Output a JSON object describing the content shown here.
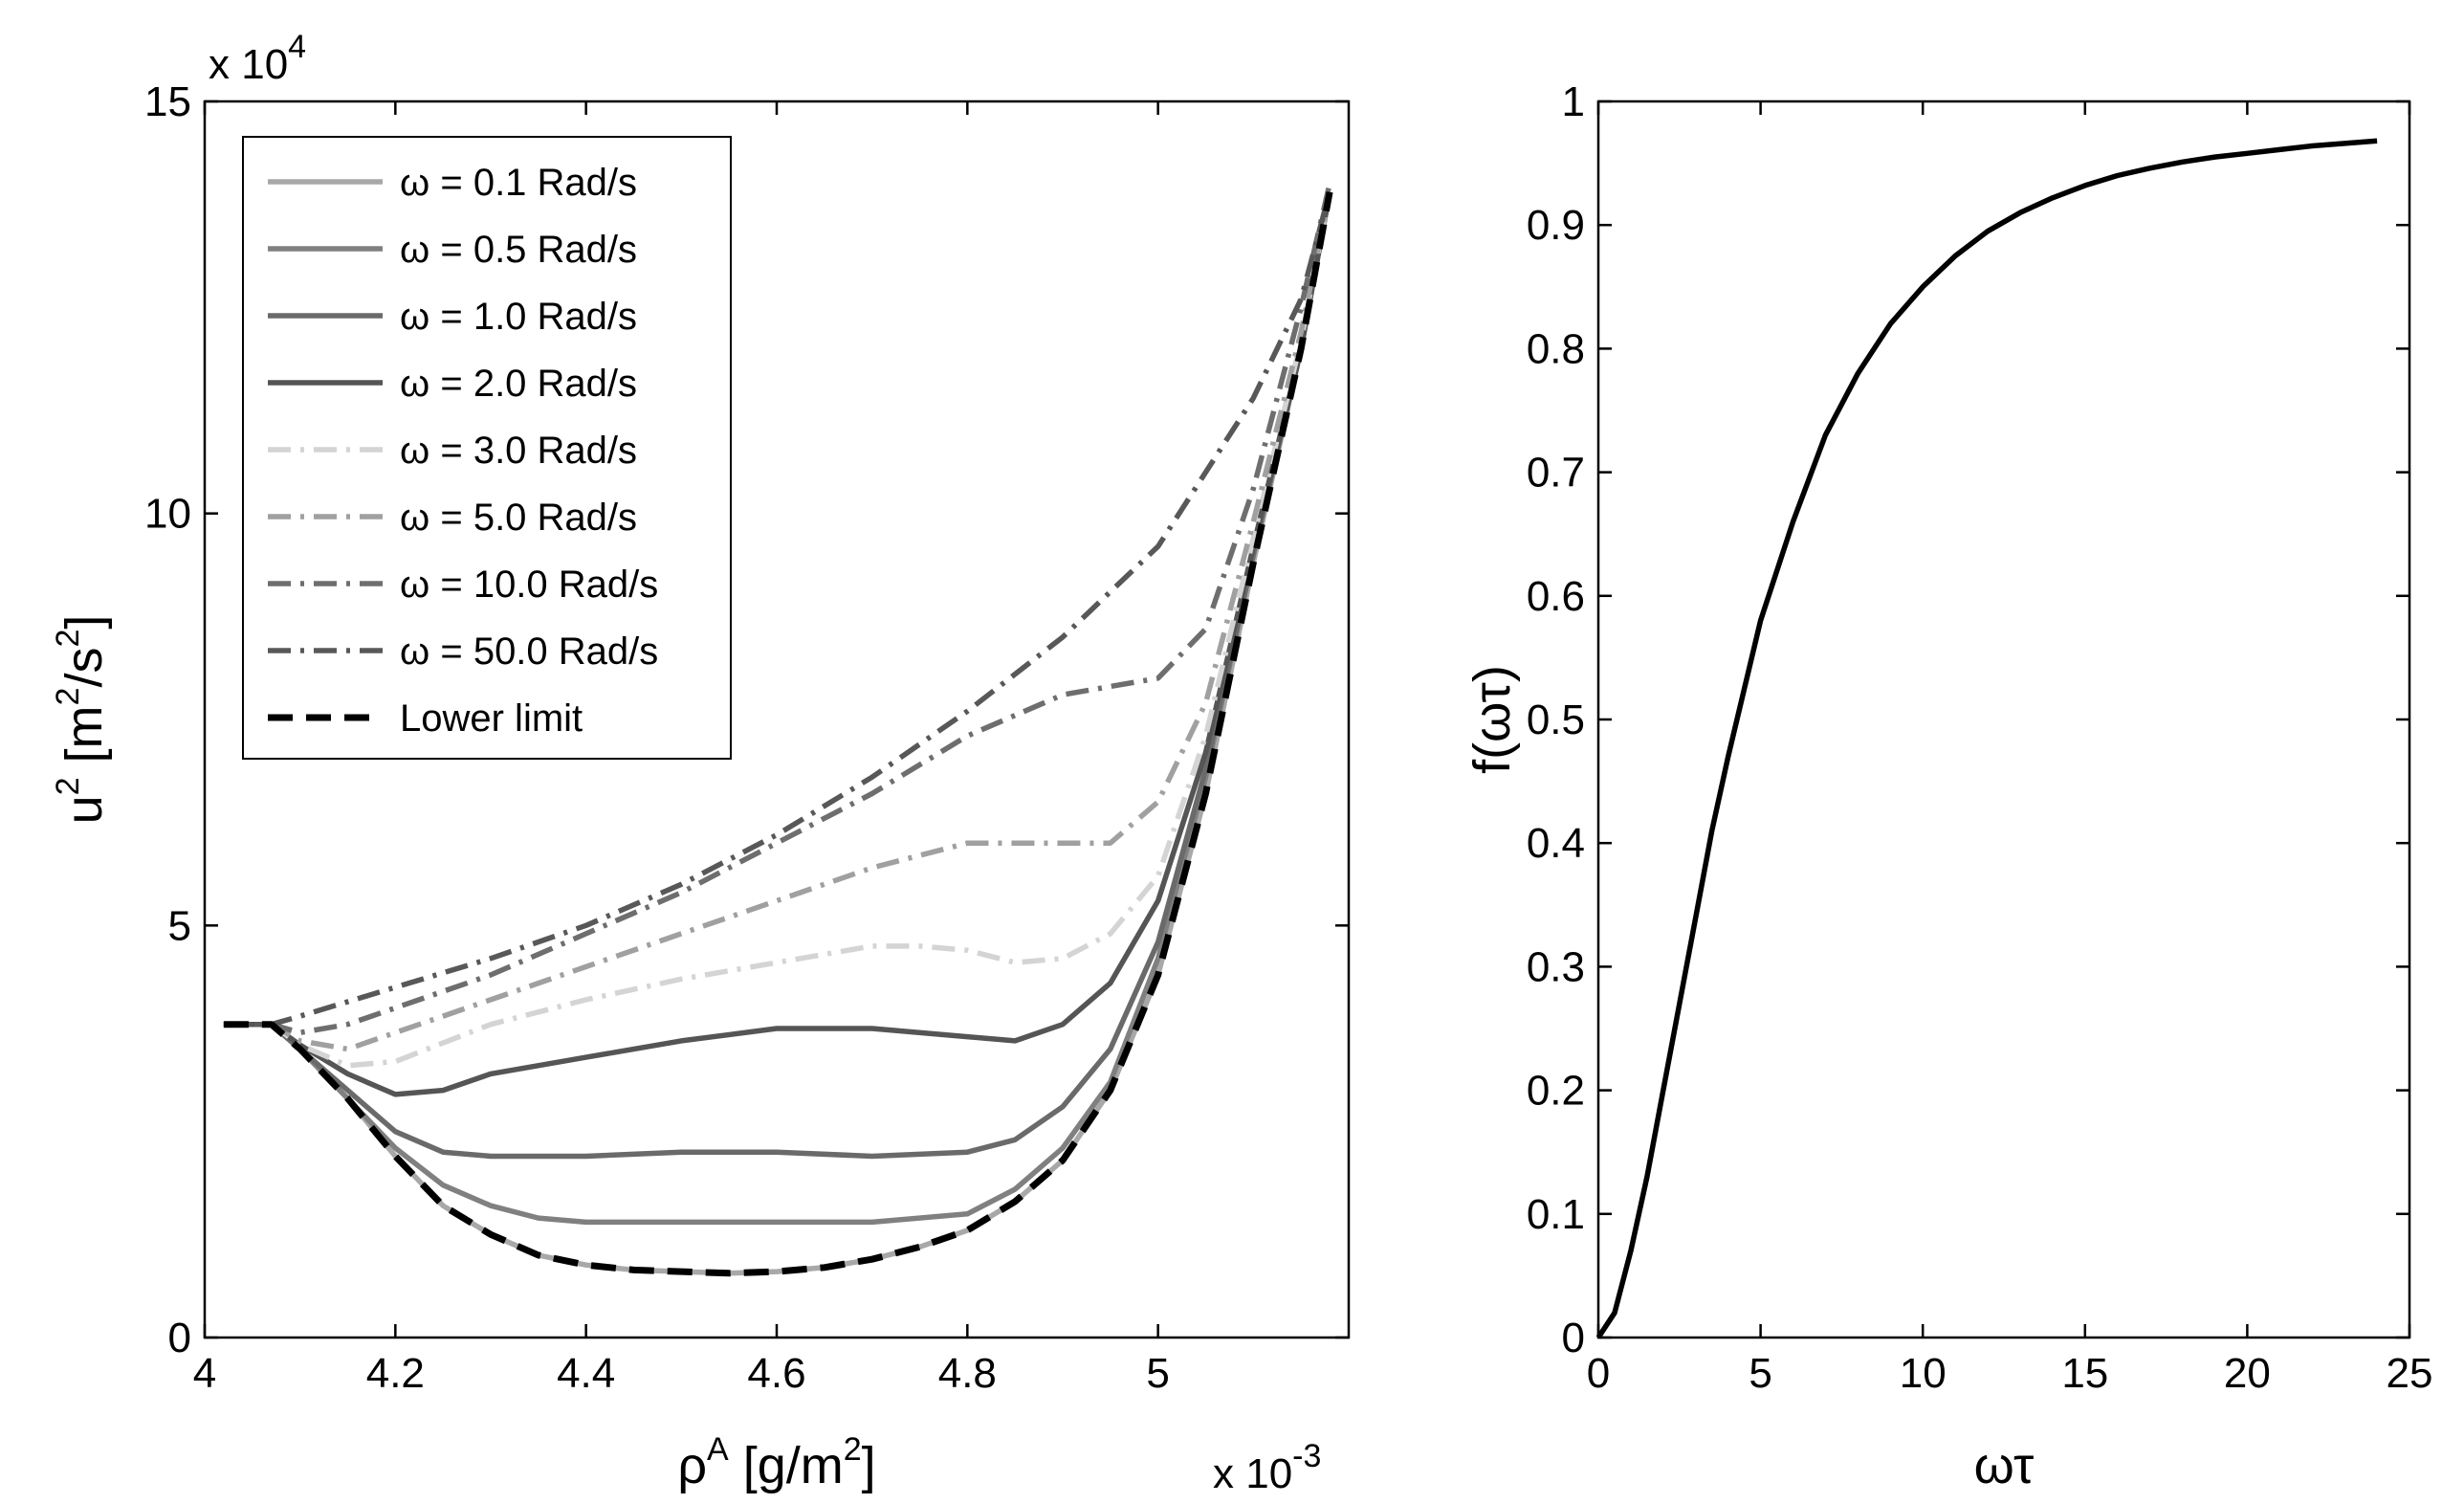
{
  "chart_data": [
    {
      "type": "line",
      "xlabel": {
        "base": "ρ",
        "sup": "A",
        "rest": " [g/m",
        "sup2": "2",
        "end": "]"
      },
      "ylabel": {
        "base": "u",
        "sup": "2",
        "rest": " [m",
        "sup2": "2",
        "mid": "/s",
        "sup3": "2",
        "end": "]"
      },
      "x_multiplier": {
        "prefix": "x 10",
        "exp": "-3"
      },
      "y_multiplier": {
        "prefix": "x 10",
        "exp": "4"
      },
      "xlim": [
        4.0,
        5.2
      ],
      "ylim": [
        0,
        15
      ],
      "xticks": [
        4,
        4.2,
        4.4,
        4.6,
        4.8,
        5
      ],
      "xtick_labels": [
        "4",
        "4.2",
        "4.4",
        "4.6",
        "4.8",
        "5"
      ],
      "yticks": [
        0,
        5,
        10,
        15
      ],
      "ytick_labels": [
        "0",
        "5",
        "10",
        "15"
      ],
      "legend_position": "top-left",
      "series": [
        {
          "name": "ω = 0.1 Rad/s",
          "color": "#a8a8a8",
          "dash": "solid",
          "points": [
            [
              4.02,
              3.8
            ],
            [
              4.07,
              3.8
            ],
            [
              4.1,
              3.5
            ],
            [
              4.15,
              2.9
            ],
            [
              4.2,
              2.2
            ],
            [
              4.25,
              1.6
            ],
            [
              4.3,
              1.25
            ],
            [
              4.35,
              1.0
            ],
            [
              4.4,
              0.88
            ],
            [
              4.45,
              0.82
            ],
            [
              4.5,
              0.8
            ],
            [
              4.55,
              0.78
            ],
            [
              4.6,
              0.8
            ],
            [
              4.65,
              0.85
            ],
            [
              4.7,
              0.95
            ],
            [
              4.75,
              1.1
            ],
            [
              4.8,
              1.3
            ],
            [
              4.85,
              1.65
            ],
            [
              4.9,
              2.15
            ],
            [
              4.95,
              3.0
            ],
            [
              5.0,
              4.4
            ],
            [
              5.05,
              6.6
            ],
            [
              5.1,
              9.4
            ],
            [
              5.15,
              12.0
            ],
            [
              5.18,
              13.9
            ]
          ]
        },
        {
          "name": "ω = 0.5 Rad/s",
          "color": "#808080",
          "dash": "solid",
          "points": [
            [
              4.02,
              3.8
            ],
            [
              4.07,
              3.8
            ],
            [
              4.1,
              3.5
            ],
            [
              4.15,
              2.9
            ],
            [
              4.2,
              2.3
            ],
            [
              4.25,
              1.85
            ],
            [
              4.3,
              1.6
            ],
            [
              4.35,
              1.45
            ],
            [
              4.4,
              1.4
            ],
            [
              4.6,
              1.4
            ],
            [
              4.7,
              1.4
            ],
            [
              4.8,
              1.5
            ],
            [
              4.85,
              1.8
            ],
            [
              4.9,
              2.3
            ],
            [
              4.95,
              3.1
            ],
            [
              5.0,
              4.6
            ],
            [
              5.05,
              6.8
            ],
            [
              5.1,
              9.5
            ],
            [
              5.15,
              12.0
            ],
            [
              5.18,
              13.9
            ]
          ]
        },
        {
          "name": "ω = 1.0 Rad/s",
          "color": "#6a6a6a",
          "dash": "solid",
          "points": [
            [
              4.02,
              3.8
            ],
            [
              4.07,
              3.8
            ],
            [
              4.1,
              3.5
            ],
            [
              4.15,
              3.0
            ],
            [
              4.2,
              2.5
            ],
            [
              4.25,
              2.25
            ],
            [
              4.3,
              2.2
            ],
            [
              4.4,
              2.2
            ],
            [
              4.5,
              2.25
            ],
            [
              4.6,
              2.25
            ],
            [
              4.7,
              2.2
            ],
            [
              4.8,
              2.25
            ],
            [
              4.85,
              2.4
            ],
            [
              4.9,
              2.8
            ],
            [
              4.95,
              3.5
            ],
            [
              5.0,
              4.8
            ],
            [
              5.05,
              6.9
            ],
            [
              5.1,
              9.5
            ],
            [
              5.15,
              12.0
            ],
            [
              5.18,
              13.9
            ]
          ]
        },
        {
          "name": "ω = 2.0 Rad/s",
          "color": "#555555",
          "dash": "solid",
          "points": [
            [
              4.02,
              3.8
            ],
            [
              4.07,
              3.8
            ],
            [
              4.1,
              3.55
            ],
            [
              4.15,
              3.2
            ],
            [
              4.2,
              2.95
            ],
            [
              4.25,
              3.0
            ],
            [
              4.3,
              3.2
            ],
            [
              4.4,
              3.4
            ],
            [
              4.5,
              3.6
            ],
            [
              4.6,
              3.75
            ],
            [
              4.7,
              3.75
            ],
            [
              4.8,
              3.65
            ],
            [
              4.85,
              3.6
            ],
            [
              4.9,
              3.8
            ],
            [
              4.95,
              4.3
            ],
            [
              5.0,
              5.3
            ],
            [
              5.05,
              7.1
            ],
            [
              5.1,
              9.6
            ],
            [
              5.15,
              12.0
            ],
            [
              5.18,
              13.9
            ]
          ]
        },
        {
          "name": "ω = 3.0 Rad/s",
          "color": "#d4d4d4",
          "dash": "dashdot",
          "points": [
            [
              4.02,
              3.8
            ],
            [
              4.07,
              3.8
            ],
            [
              4.1,
              3.55
            ],
            [
              4.15,
              3.3
            ],
            [
              4.2,
              3.35
            ],
            [
              4.3,
              3.8
            ],
            [
              4.4,
              4.1
            ],
            [
              4.5,
              4.35
            ],
            [
              4.6,
              4.55
            ],
            [
              4.7,
              4.75
            ],
            [
              4.75,
              4.75
            ],
            [
              4.8,
              4.7
            ],
            [
              4.85,
              4.55
            ],
            [
              4.9,
              4.6
            ],
            [
              4.95,
              4.9
            ],
            [
              5.0,
              5.6
            ],
            [
              5.05,
              7.3
            ],
            [
              5.1,
              9.7
            ],
            [
              5.15,
              12.1
            ],
            [
              5.18,
              13.9
            ]
          ]
        },
        {
          "name": "ω = 5.0 Rad/s",
          "color": "#a0a0a0",
          "dash": "dashdot",
          "points": [
            [
              4.02,
              3.8
            ],
            [
              4.07,
              3.8
            ],
            [
              4.1,
              3.6
            ],
            [
              4.15,
              3.5
            ],
            [
              4.2,
              3.7
            ],
            [
              4.3,
              4.1
            ],
            [
              4.4,
              4.5
            ],
            [
              4.5,
              4.9
            ],
            [
              4.6,
              5.3
            ],
            [
              4.7,
              5.7
            ],
            [
              4.8,
              6.0
            ],
            [
              4.9,
              6.0
            ],
            [
              4.95,
              6.0
            ],
            [
              5.0,
              6.5
            ],
            [
              5.05,
              7.7
            ],
            [
              5.1,
              9.9
            ],
            [
              5.15,
              12.2
            ],
            [
              5.18,
              13.9
            ]
          ]
        },
        {
          "name": "ω = 10.0 Rad/s",
          "color": "#6e6e6e",
          "dash": "dashdot",
          "points": [
            [
              4.02,
              3.8
            ],
            [
              4.07,
              3.8
            ],
            [
              4.1,
              3.7
            ],
            [
              4.15,
              3.8
            ],
            [
              4.2,
              4.0
            ],
            [
              4.3,
              4.4
            ],
            [
              4.4,
              4.9
            ],
            [
              4.5,
              5.4
            ],
            [
              4.6,
              6.0
            ],
            [
              4.7,
              6.6
            ],
            [
              4.8,
              7.3
            ],
            [
              4.9,
              7.8
            ],
            [
              4.95,
              7.9
            ],
            [
              5.0,
              8.0
            ],
            [
              5.05,
              8.6
            ],
            [
              5.1,
              10.3
            ],
            [
              5.15,
              12.5
            ],
            [
              5.18,
              14.0
            ]
          ]
        },
        {
          "name": "ω = 50.0 Rad/s",
          "color": "#585858",
          "dash": "dashdot",
          "points": [
            [
              4.02,
              3.8
            ],
            [
              4.07,
              3.8
            ],
            [
              4.1,
              3.9
            ],
            [
              4.2,
              4.25
            ],
            [
              4.3,
              4.6
            ],
            [
              4.4,
              5.0
            ],
            [
              4.5,
              5.5
            ],
            [
              4.6,
              6.1
            ],
            [
              4.7,
              6.8
            ],
            [
              4.8,
              7.6
            ],
            [
              4.9,
              8.5
            ],
            [
              5.0,
              9.6
            ],
            [
              5.1,
              11.4
            ],
            [
              5.15,
              12.6
            ],
            [
              5.18,
              13.9
            ]
          ]
        },
        {
          "name": "Lower limit",
          "color": "#000000",
          "dash": "dashed",
          "points": [
            [
              4.02,
              3.8
            ],
            [
              4.07,
              3.8
            ],
            [
              4.1,
              3.5
            ],
            [
              4.15,
              2.9
            ],
            [
              4.2,
              2.2
            ],
            [
              4.25,
              1.6
            ],
            [
              4.3,
              1.25
            ],
            [
              4.35,
              1.0
            ],
            [
              4.4,
              0.88
            ],
            [
              4.45,
              0.82
            ],
            [
              4.5,
              0.8
            ],
            [
              4.55,
              0.78
            ],
            [
              4.6,
              0.8
            ],
            [
              4.65,
              0.85
            ],
            [
              4.7,
              0.95
            ],
            [
              4.75,
              1.1
            ],
            [
              4.8,
              1.3
            ],
            [
              4.85,
              1.65
            ],
            [
              4.9,
              2.15
            ],
            [
              4.95,
              3.0
            ],
            [
              5.0,
              4.4
            ],
            [
              5.05,
              6.6
            ],
            [
              5.1,
              9.4
            ],
            [
              5.15,
              12.0
            ],
            [
              5.18,
              13.9
            ]
          ]
        }
      ]
    },
    {
      "type": "line",
      "xlabel": "ωτ",
      "ylabel": "f(ωτ)",
      "xlim": [
        0,
        25
      ],
      "ylim": [
        0,
        1
      ],
      "xticks": [
        0,
        5,
        10,
        15,
        20,
        25
      ],
      "xtick_labels": [
        "0",
        "5",
        "10",
        "15",
        "20",
        "25"
      ],
      "yticks": [
        0,
        0.1,
        0.2,
        0.3,
        0.4,
        0.5,
        0.6,
        0.7,
        0.8,
        0.9,
        1
      ],
      "ytick_labels": [
        "0",
        "0.1",
        "0.2",
        "0.3",
        "0.4",
        "0.5",
        "0.6",
        "0.7",
        "0.8",
        "0.9",
        "1"
      ],
      "series": [
        {
          "name": "f(ωτ)",
          "color": "#000000",
          "dash": "solid",
          "points": [
            [
              0,
              0
            ],
            [
              0.5,
              0.02
            ],
            [
              1,
              0.07
            ],
            [
              1.5,
              0.13
            ],
            [
              2,
              0.2
            ],
            [
              2.5,
              0.27
            ],
            [
              3,
              0.34
            ],
            [
              3.5,
              0.41
            ],
            [
              4,
              0.47
            ],
            [
              5,
              0.58
            ],
            [
              6,
              0.66
            ],
            [
              7,
              0.73
            ],
            [
              8,
              0.78
            ],
            [
              9,
              0.82
            ],
            [
              10,
              0.85
            ],
            [
              11,
              0.875
            ],
            [
              12,
              0.895
            ],
            [
              13,
              0.91
            ],
            [
              14,
              0.922
            ],
            [
              15,
              0.932
            ],
            [
              16,
              0.94
            ],
            [
              17,
              0.946
            ],
            [
              18,
              0.951
            ],
            [
              19,
              0.955
            ],
            [
              20,
              0.958
            ],
            [
              21,
              0.961
            ],
            [
              22,
              0.964
            ],
            [
              23,
              0.966
            ],
            [
              24,
              0.968
            ]
          ]
        }
      ]
    }
  ]
}
